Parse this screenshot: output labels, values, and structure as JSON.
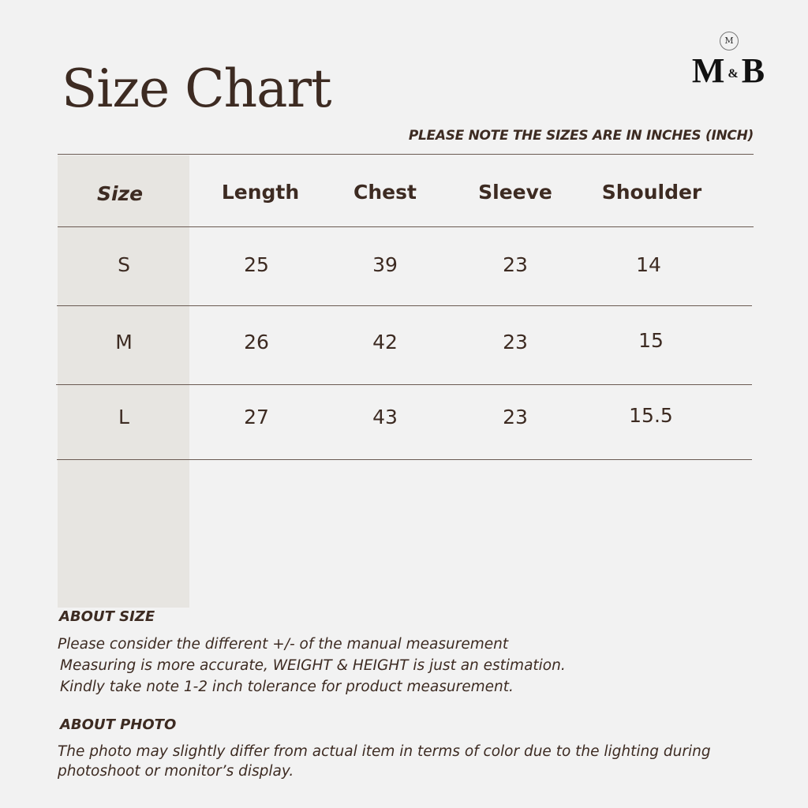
{
  "title": "Size Chart",
  "logo": {
    "text_left": "M",
    "text_amp": "&",
    "text_right": "B",
    "emblem": "M"
  },
  "note": "PLEASE NOTE THE SIZES ARE IN INCHES (INCH)",
  "table": {
    "headers": [
      "Size",
      "Length",
      "Chest",
      "Sleeve",
      "Shoulder"
    ],
    "rows": [
      [
        "S",
        "25",
        "39",
        "23",
        "14"
      ],
      [
        "M",
        "26",
        "42",
        "23",
        "15"
      ],
      [
        "L",
        "27",
        "43",
        "23",
        "15.5"
      ]
    ]
  },
  "about_size": {
    "heading": "ABOUT SIZE",
    "lines": [
      "Please consider the different +/- of the manual measurement",
      "Measuring is more accurate, WEIGHT & HEIGHT is just an estimation.",
      "Kindly take note 1-2 inch tolerance for product measurement."
    ]
  },
  "about_photo": {
    "heading": "ABOUT PHOTO",
    "lines": [
      "The photo may slightly differ from actual item in terms of color due to the lighting during",
      "photoshoot or monitor’s display."
    ]
  },
  "colors": {
    "text": "#3d2b22",
    "background": "#f2f2f2",
    "size_column": "#e7e5e1"
  }
}
